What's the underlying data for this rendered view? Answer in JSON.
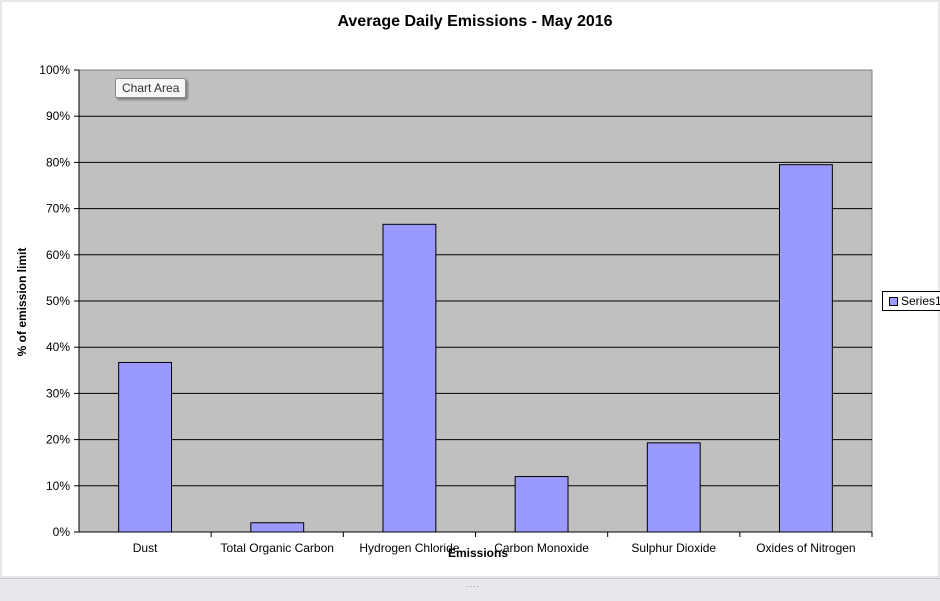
{
  "tooltip": {
    "label": "Chart Area"
  },
  "legend": {
    "label": "Series1"
  },
  "colors": {
    "bar": "#9999ff",
    "plot_bg": "#c0c0c0"
  },
  "chart_data": {
    "type": "bar",
    "title": "Average Daily Emissions - May 2016",
    "xlabel": "Emissions",
    "ylabel": "% of emission limit",
    "categories": [
      "Dust",
      "Total Organic Carbon",
      "Hydrogen Chloride",
      "Carbon Monoxide",
      "Sulphur Dioxide",
      "Oxides of Nitrogen"
    ],
    "series": [
      {
        "name": "Series1",
        "values": [
          36.7,
          2.0,
          66.6,
          12.0,
          19.3,
          79.5
        ]
      }
    ],
    "ylim": [
      0,
      100
    ],
    "yticks": [
      "0%",
      "10%",
      "20%",
      "30%",
      "40%",
      "50%",
      "60%",
      "70%",
      "80%",
      "90%",
      "100%"
    ],
    "grid": true,
    "legend_position": "right"
  }
}
